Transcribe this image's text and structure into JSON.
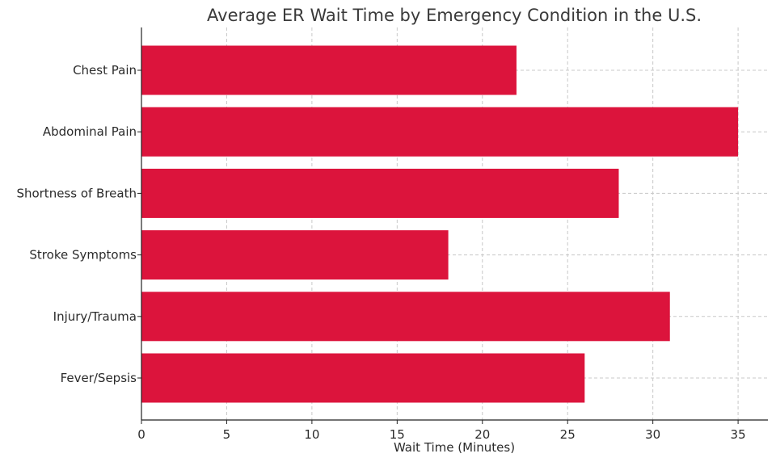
{
  "chart_data": {
    "type": "bar",
    "orientation": "horizontal",
    "title": "Average ER Wait Time by Emergency Condition in the U.S.",
    "xlabel": "Wait Time (Minutes)",
    "ylabel": "",
    "categories": [
      "Chest Pain",
      "Abdominal Pain",
      "Shortness of Breath",
      "Stroke Symptoms",
      "Injury/Trauma",
      "Fever/Sepsis"
    ],
    "values": [
      22,
      35,
      28,
      18,
      31,
      26
    ],
    "xlim": [
      0,
      36.75
    ],
    "xticks": [
      0,
      5,
      10,
      15,
      20,
      25,
      30,
      35
    ],
    "grid": true,
    "bar_color": "#dc143c"
  }
}
